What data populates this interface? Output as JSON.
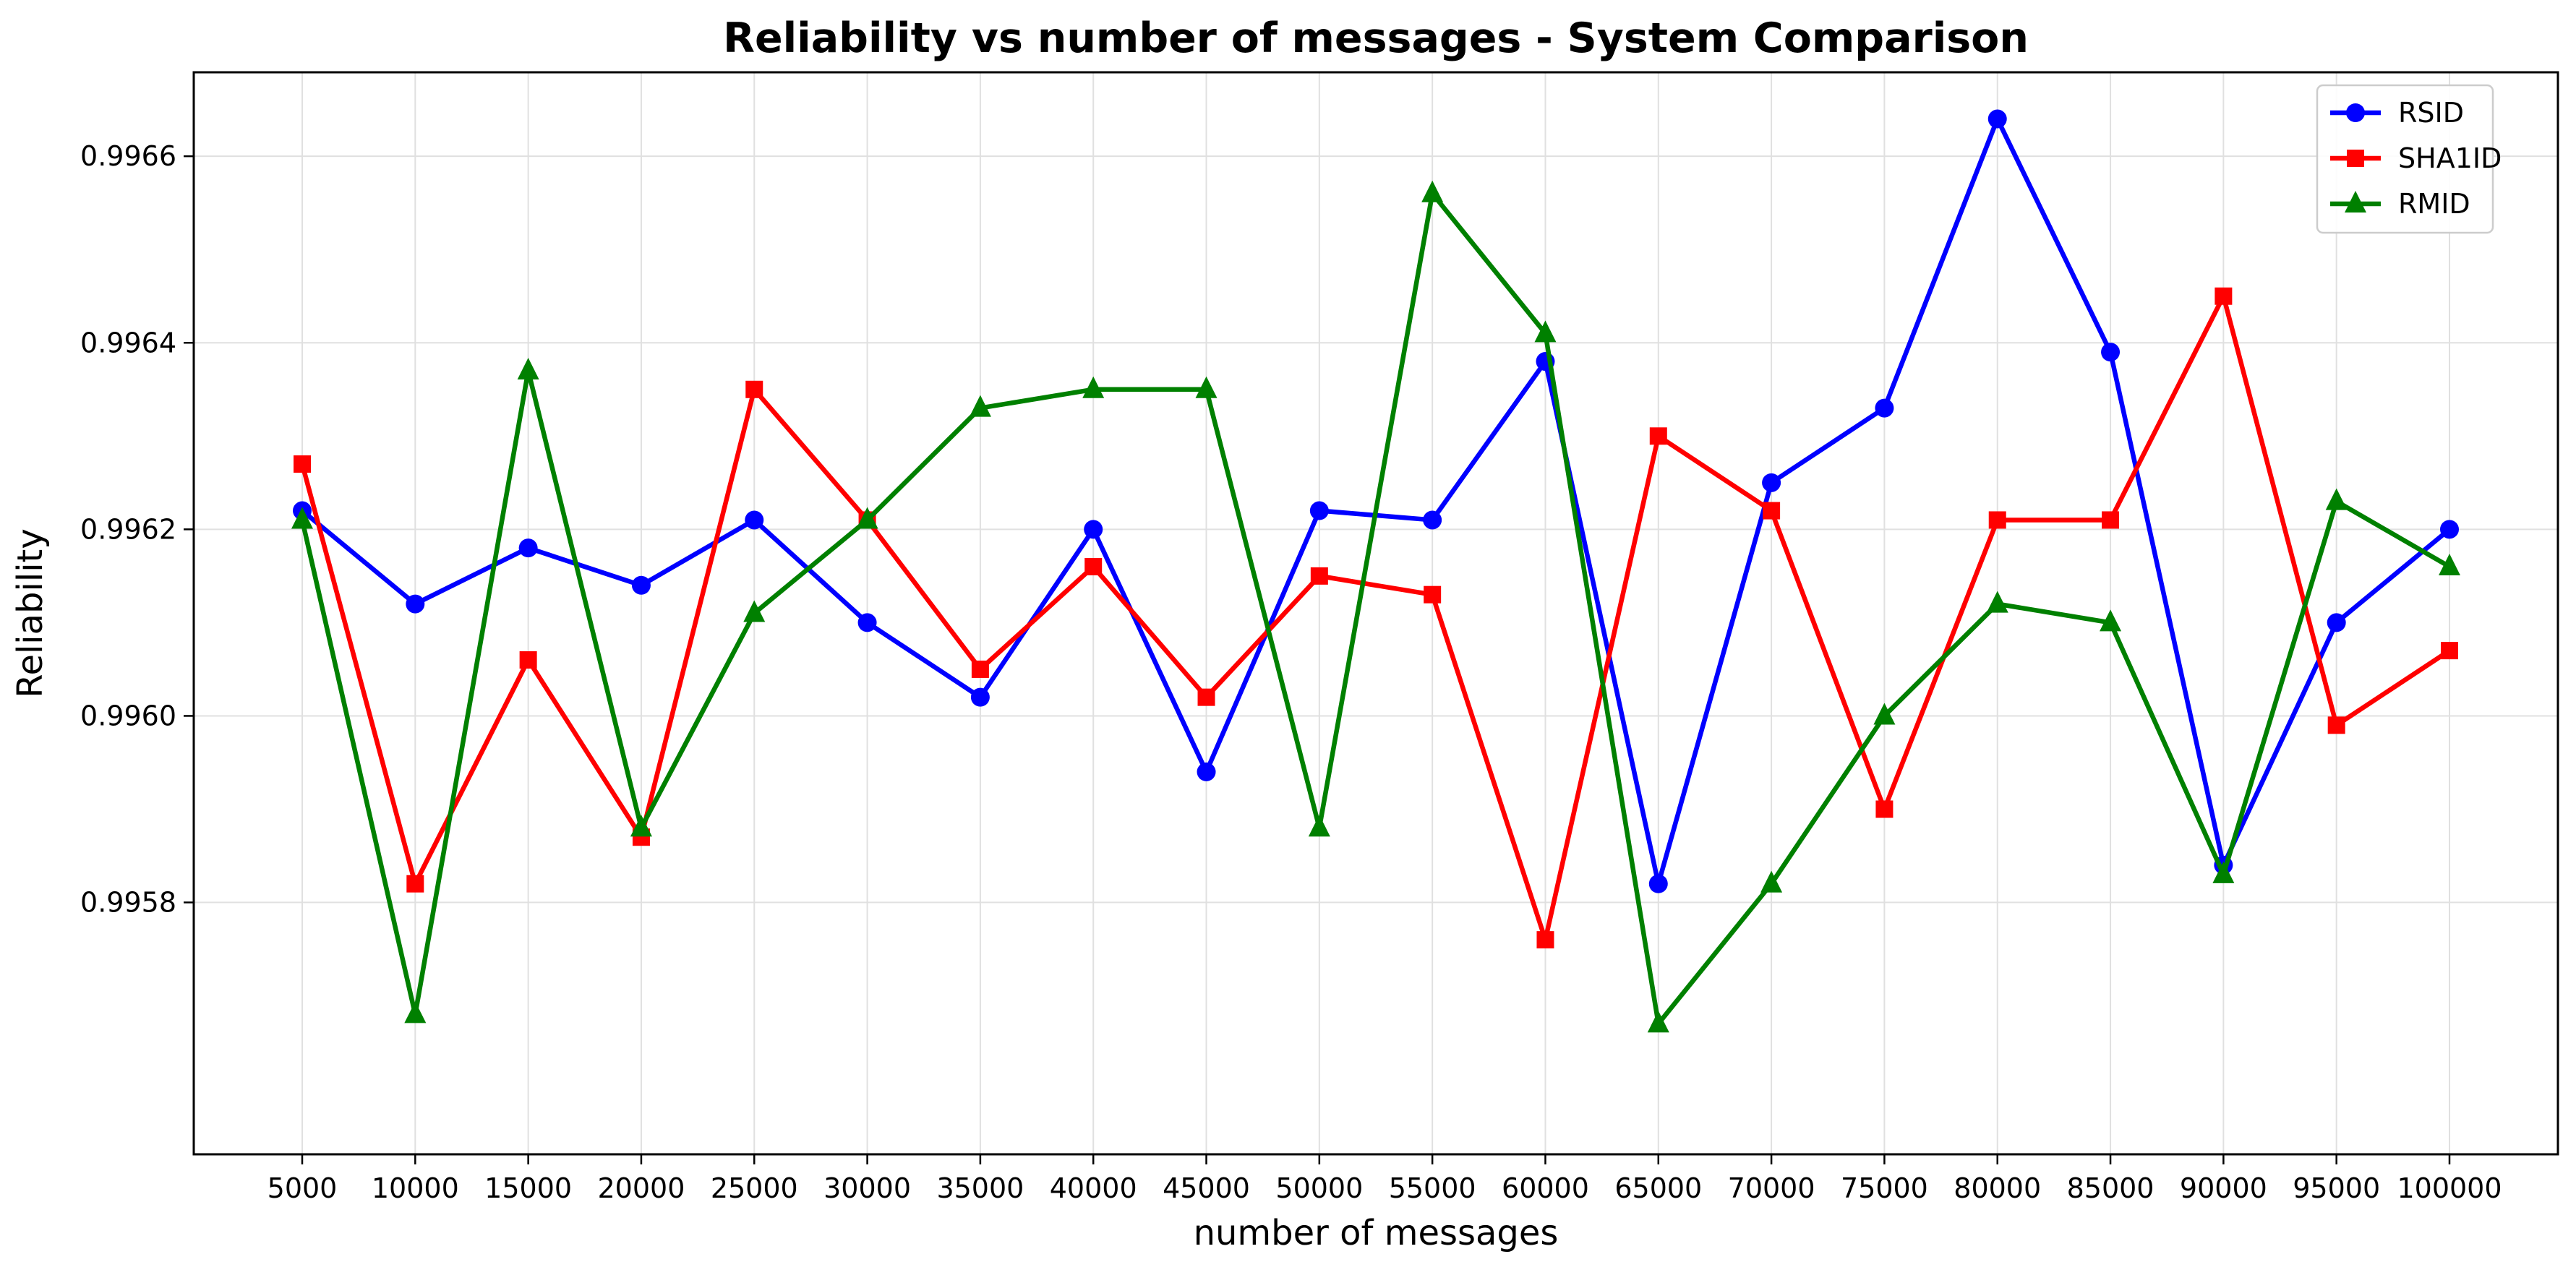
{
  "chart_data": {
    "type": "line",
    "title": "Reliability vs number of messages - System Comparison",
    "xlabel": "number of messages",
    "ylabel": "Reliability",
    "x": [
      5000,
      10000,
      15000,
      20000,
      25000,
      30000,
      35000,
      40000,
      45000,
      50000,
      55000,
      60000,
      65000,
      70000,
      75000,
      80000,
      85000,
      90000,
      95000,
      100000
    ],
    "x_tick_labels": [
      "5000",
      "10000",
      "15000",
      "20000",
      "25000",
      "30000",
      "35000",
      "40000",
      "45000",
      "50000",
      "55000",
      "60000",
      "65000",
      "70000",
      "75000",
      "80000",
      "85000",
      "90000",
      "95000",
      "100000"
    ],
    "ylim": [
      0.99553,
      0.99669
    ],
    "y_ticks": [
      0.9958,
      0.996,
      0.9962,
      0.9964,
      0.9966
    ],
    "y_tick_labels": [
      "0.9958",
      "0.9960",
      "0.9962",
      "0.9964",
      "0.9966"
    ],
    "grid": true,
    "legend_position": "top-right",
    "series": [
      {
        "name": "RSID",
        "color": "#0000ff",
        "marker": "circle",
        "values": [
          0.99622,
          0.99612,
          0.99618,
          0.99614,
          0.99621,
          0.9961,
          0.99602,
          0.9962,
          0.99594,
          0.99622,
          0.99621,
          0.99638,
          0.99582,
          0.99625,
          0.99633,
          0.99664,
          0.99639,
          0.99584,
          0.9961,
          0.9962
        ]
      },
      {
        "name": "SHA1ID",
        "color": "#ff0000",
        "marker": "square",
        "values": [
          0.99627,
          0.99582,
          0.99606,
          0.99587,
          0.99635,
          0.99621,
          0.99605,
          0.99616,
          0.99602,
          0.99615,
          0.99613,
          0.99576,
          0.9963,
          0.99622,
          0.9959,
          0.99621,
          0.99621,
          0.99645,
          0.99599,
          0.99607
        ]
      },
      {
        "name": "RMID",
        "color": "#008000",
        "marker": "triangle",
        "values": [
          0.99621,
          0.99568,
          0.99637,
          0.99588,
          0.99611,
          0.99621,
          0.99633,
          0.99635,
          0.99635,
          0.99588,
          0.99656,
          0.99641,
          0.99567,
          0.99582,
          0.996,
          0.99612,
          0.9961,
          0.99583,
          0.99623,
          0.99616
        ]
      }
    ]
  }
}
